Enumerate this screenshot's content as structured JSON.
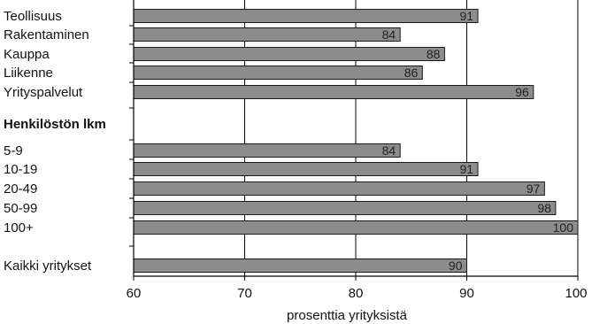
{
  "chart_data": {
    "type": "bar",
    "orientation": "horizontal",
    "xlabel": "prosenttia yrityksistä",
    "xlim": [
      60,
      100
    ],
    "xticks": [
      60,
      70,
      80,
      90,
      100
    ],
    "grid": true,
    "rows": [
      {
        "label": "Teollisuus",
        "value": 91
      },
      {
        "label": "Rakentaminen",
        "value": 84
      },
      {
        "label": "Kauppa",
        "value": 88
      },
      {
        "label": "Liikenne",
        "value": 86
      },
      {
        "label": "Yrityspalvelut",
        "value": 96
      },
      {
        "label": "Henkilöstön lkm",
        "header": true
      },
      {
        "label": "5-9",
        "value": 84
      },
      {
        "label": "10-19",
        "value": 91
      },
      {
        "label": "20-49",
        "value": 97
      },
      {
        "label": "50-99",
        "value": 98
      },
      {
        "label": "100+",
        "value": 100
      },
      {
        "label": "Kaikki yritykset",
        "value": 90
      }
    ],
    "colors": {
      "bar_fill": "#8c8c8c",
      "bar_stroke": "#1a1a1a",
      "grid": "#000000"
    }
  }
}
